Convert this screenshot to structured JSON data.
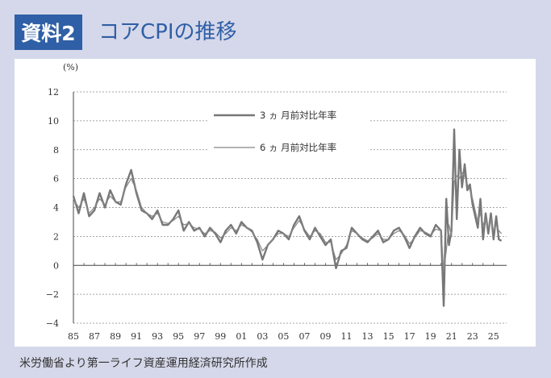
{
  "header": {
    "badge": "資料2",
    "title": "コアCPIの推移"
  },
  "source": "米労働省より第一ライフ資産運用経済研究所作成",
  "chart_data": {
    "type": "line",
    "ylabel": "(%)",
    "ylim": [
      -4,
      12
    ],
    "yticks": [
      12,
      10,
      8,
      6,
      4,
      2,
      0,
      -2,
      -4
    ],
    "xlim": [
      1985,
      2026
    ],
    "xtick_labels": [
      "85",
      "87",
      "89",
      "91",
      "93",
      "95",
      "97",
      "99",
      "01",
      "03",
      "05",
      "07",
      "09",
      "11",
      "13",
      "15",
      "17",
      "19",
      "21",
      "23",
      "25"
    ],
    "grid": "horizontal dashed",
    "legend_placement": "top-center",
    "x": [
      1985,
      1985.5,
      1986,
      1986.5,
      1987,
      1987.5,
      1988,
      1988.5,
      1989,
      1989.5,
      1990,
      1990.5,
      1991,
      1991.5,
      1992,
      1992.5,
      1993,
      1993.5,
      1994,
      1994.5,
      1995,
      1995.5,
      1996,
      1996.5,
      1997,
      1997.5,
      1998,
      1998.5,
      1999,
      1999.5,
      2000,
      2000.5,
      2001,
      2001.5,
      2002,
      2002.5,
      2003,
      2003.5,
      2004,
      2004.5,
      2005,
      2005.5,
      2006,
      2006.5,
      2007,
      2007.5,
      2008,
      2008.5,
      2009,
      2009.5,
      2010,
      2010.5,
      2011,
      2011.5,
      2012,
      2012.5,
      2013,
      2013.5,
      2014,
      2014.5,
      2015,
      2015.5,
      2016,
      2016.5,
      2017,
      2017.5,
      2018,
      2018.5,
      2019,
      2019.5,
      2020,
      2020.25,
      2020.5,
      2020.75,
      2021,
      2021.25,
      2021.5,
      2021.75,
      2022,
      2022.25,
      2022.5,
      2022.75,
      2023,
      2023.25,
      2023.5,
      2023.75,
      2024,
      2024.25,
      2024.5,
      2024.75,
      2025,
      2025.25,
      2025.5,
      2025.75
    ],
    "series": [
      {
        "name": "3ヵ月前対比年率",
        "color": "#777777",
        "width": 2.4,
        "values": [
          4.8,
          3.6,
          5.0,
          3.4,
          3.8,
          5.0,
          4.0,
          5.2,
          4.4,
          4.2,
          5.6,
          6.6,
          5.0,
          3.8,
          3.6,
          3.2,
          3.8,
          2.8,
          2.8,
          3.2,
          3.8,
          2.4,
          3.0,
          2.4,
          2.6,
          2.0,
          2.6,
          2.2,
          1.6,
          2.4,
          2.8,
          2.2,
          3.0,
          2.6,
          2.4,
          1.6,
          0.4,
          1.4,
          1.8,
          2.4,
          2.2,
          1.8,
          2.8,
          3.4,
          2.4,
          1.8,
          2.6,
          2.0,
          1.4,
          1.8,
          -0.2,
          1.0,
          1.2,
          2.6,
          2.2,
          1.8,
          1.6,
          2.0,
          2.4,
          1.6,
          1.8,
          2.4,
          2.6,
          2.0,
          1.2,
          2.0,
          2.6,
          2.2,
          2.0,
          2.8,
          2.4,
          -2.8,
          4.6,
          1.4,
          2.4,
          9.4,
          3.2,
          8.0,
          5.4,
          7.0,
          5.2,
          5.6,
          4.2,
          3.4,
          2.6,
          4.6,
          1.8,
          3.6,
          2.2,
          3.6,
          1.8,
          3.4,
          1.8,
          1.7
        ]
      },
      {
        "name": "6ヵ月前対比年率",
        "color": "#888888",
        "width": 1.2,
        "values": [
          4.6,
          4.0,
          4.6,
          3.6,
          4.0,
          4.6,
          4.2,
          4.8,
          4.4,
          4.4,
          5.4,
          6.0,
          5.2,
          4.0,
          3.6,
          3.4,
          3.6,
          3.0,
          2.9,
          3.1,
          3.4,
          2.8,
          2.9,
          2.6,
          2.5,
          2.2,
          2.4,
          2.3,
          1.9,
          2.2,
          2.6,
          2.4,
          2.8,
          2.6,
          2.3,
          1.8,
          1.0,
          1.4,
          1.8,
          2.2,
          2.2,
          2.0,
          2.6,
          3.1,
          2.5,
          2.0,
          2.4,
          2.2,
          1.6,
          1.6,
          0.4,
          0.8,
          1.4,
          2.4,
          2.2,
          1.9,
          1.7,
          1.9,
          2.2,
          1.8,
          1.8,
          2.2,
          2.4,
          2.1,
          1.5,
          1.9,
          2.4,
          2.3,
          2.1,
          2.5,
          2.4,
          -0.4,
          1.0,
          2.8,
          2.0,
          5.8,
          6.2,
          6.0,
          6.4,
          6.2,
          5.6,
          5.2,
          4.6,
          3.8,
          3.0,
          3.6,
          2.8,
          3.2,
          2.6,
          3.2,
          2.4,
          2.8,
          2.4,
          2.2
        ]
      }
    ]
  }
}
